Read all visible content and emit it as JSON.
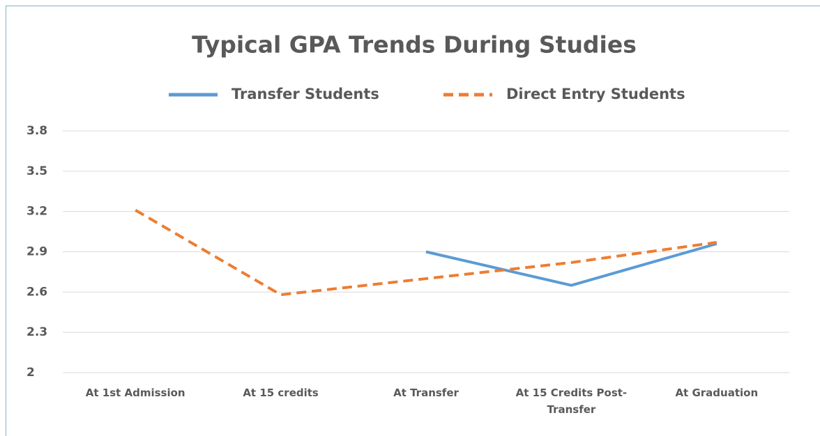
{
  "chart_data": {
    "type": "line",
    "title": "Typical GPA Trends During Studies",
    "categories": [
      "At 1st Admission",
      "At 15 credits",
      "At Transfer",
      "At 15 Credits Post-Transfer",
      "At Graduation"
    ],
    "series": [
      {
        "name": "Transfer Students",
        "color": "#5b9bd5",
        "line_style": "solid",
        "values": [
          null,
          null,
          2.9,
          2.65,
          2.96
        ]
      },
      {
        "name": "Direct Entry Students",
        "color": "#ed7d31",
        "line_style": "dashed",
        "values": [
          3.21,
          2.58,
          2.7,
          2.82,
          2.97
        ]
      }
    ],
    "ylim": [
      2,
      3.8
    ],
    "yticks": [
      2,
      2.3,
      2.6,
      2.9,
      3.2,
      3.5,
      3.8
    ],
    "grid": true,
    "legend": "top"
  }
}
